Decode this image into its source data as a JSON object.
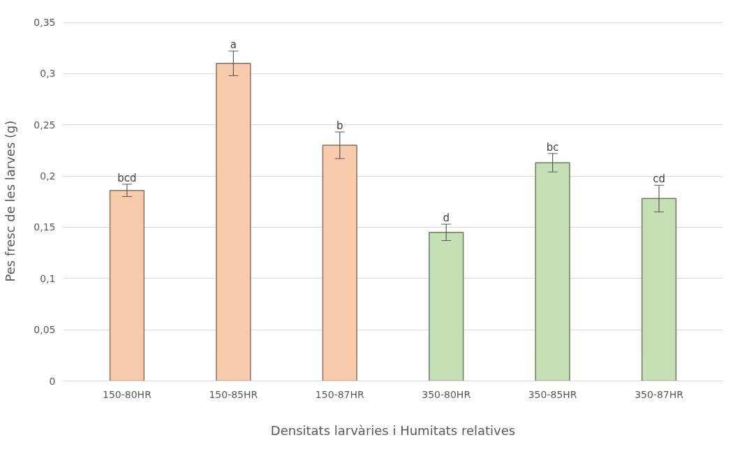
{
  "chart_data": {
    "type": "bar",
    "xlabel": "Densitats larvàries i Humitats relatives",
    "ylabel": "Pes fresc de les larves (g)",
    "categories": [
      "150-80HR",
      "150-85HR",
      "150-87HR",
      "350-80HR",
      "350-85HR",
      "350-87HR"
    ],
    "values": [
      0.186,
      0.31,
      0.23,
      0.145,
      0.213,
      0.178
    ],
    "errors": [
      0.006,
      0.012,
      0.013,
      0.008,
      0.009,
      0.013
    ],
    "colors": [
      "#f8cbad",
      "#f8cbad",
      "#f8cbad",
      "#c5e0b4",
      "#c5e0b4",
      "#c5e0b4"
    ],
    "ylim": [
      0,
      0.35
    ],
    "yticks": [
      0,
      {
        "value": 0.05,
        "label": "0,05"
      },
      {
        "value": 0.1,
        "label": "0,1"
      },
      {
        "value": 0.15,
        "label": "0,15"
      },
      {
        "value": 0.2,
        "label": "0,2"
      },
      {
        "value": 0.25,
        "label": "0,25"
      },
      {
        "value": 0.3,
        "label": "0,3"
      },
      {
        "value": 0.35,
        "label": "0,35"
      }
    ],
    "grid": "y",
    "annotations": [
      {
        "text": "bcd",
        "x": "150-80HR",
        "y": 0.192
      },
      {
        "text": "a",
        "x": "150-85HR",
        "y": 0.322
      },
      {
        "text": "b",
        "x": "150-87HR",
        "y": 0.243
      },
      {
        "text": "d",
        "x": "350-80HR",
        "y": 0.153
      },
      {
        "text": "bc",
        "x": "350-85HR",
        "y": 0.222
      },
      {
        "text": "cd",
        "x": "350-87HR",
        "y": 0.191
      }
    ]
  }
}
